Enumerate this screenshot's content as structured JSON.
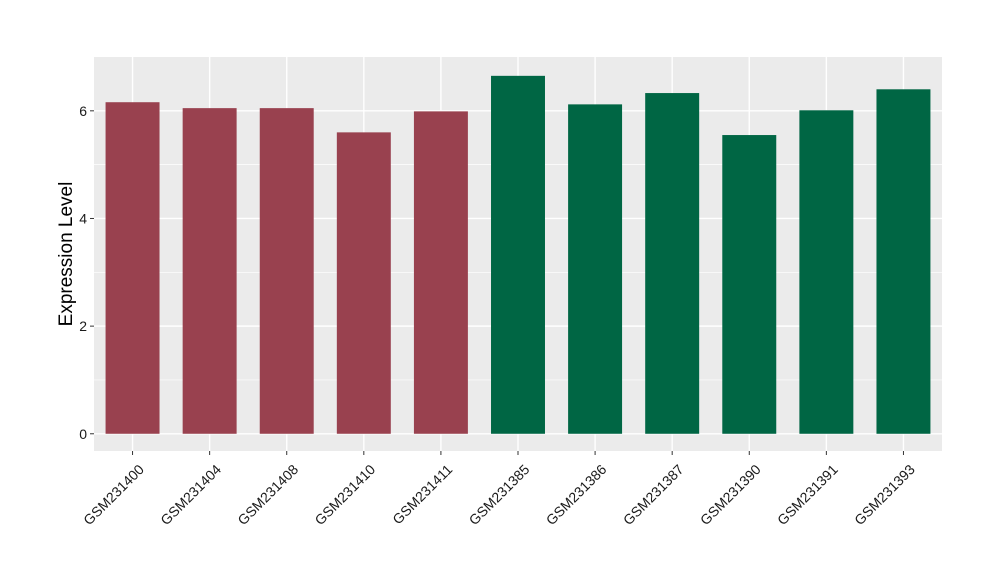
{
  "chart_data": {
    "type": "bar",
    "title": "",
    "xlabel": "",
    "ylabel": "Expression Level",
    "categories": [
      "GSM231400",
      "GSM231404",
      "GSM231408",
      "GSM231410",
      "GSM231411",
      "GSM231385",
      "GSM231386",
      "GSM231387",
      "GSM231390",
      "GSM231391",
      "GSM231393"
    ],
    "values": [
      6.16,
      6.05,
      6.05,
      5.6,
      5.99,
      6.65,
      6.12,
      6.33,
      5.55,
      6.01,
      6.4
    ],
    "bar_colors": [
      "#99414f",
      "#99414f",
      "#99414f",
      "#99414f",
      "#99414f",
      "#006644",
      "#006644",
      "#006644",
      "#006644",
      "#006644",
      "#006644"
    ],
    "ylim": [
      -0.32,
      7.0
    ],
    "yticks": [
      0,
      2,
      4,
      6
    ],
    "ytick_labels": [
      "0",
      "2",
      "4",
      "6"
    ],
    "grid": true,
    "panel_background": "#ebebeb",
    "grid_color": "#ffffff"
  }
}
